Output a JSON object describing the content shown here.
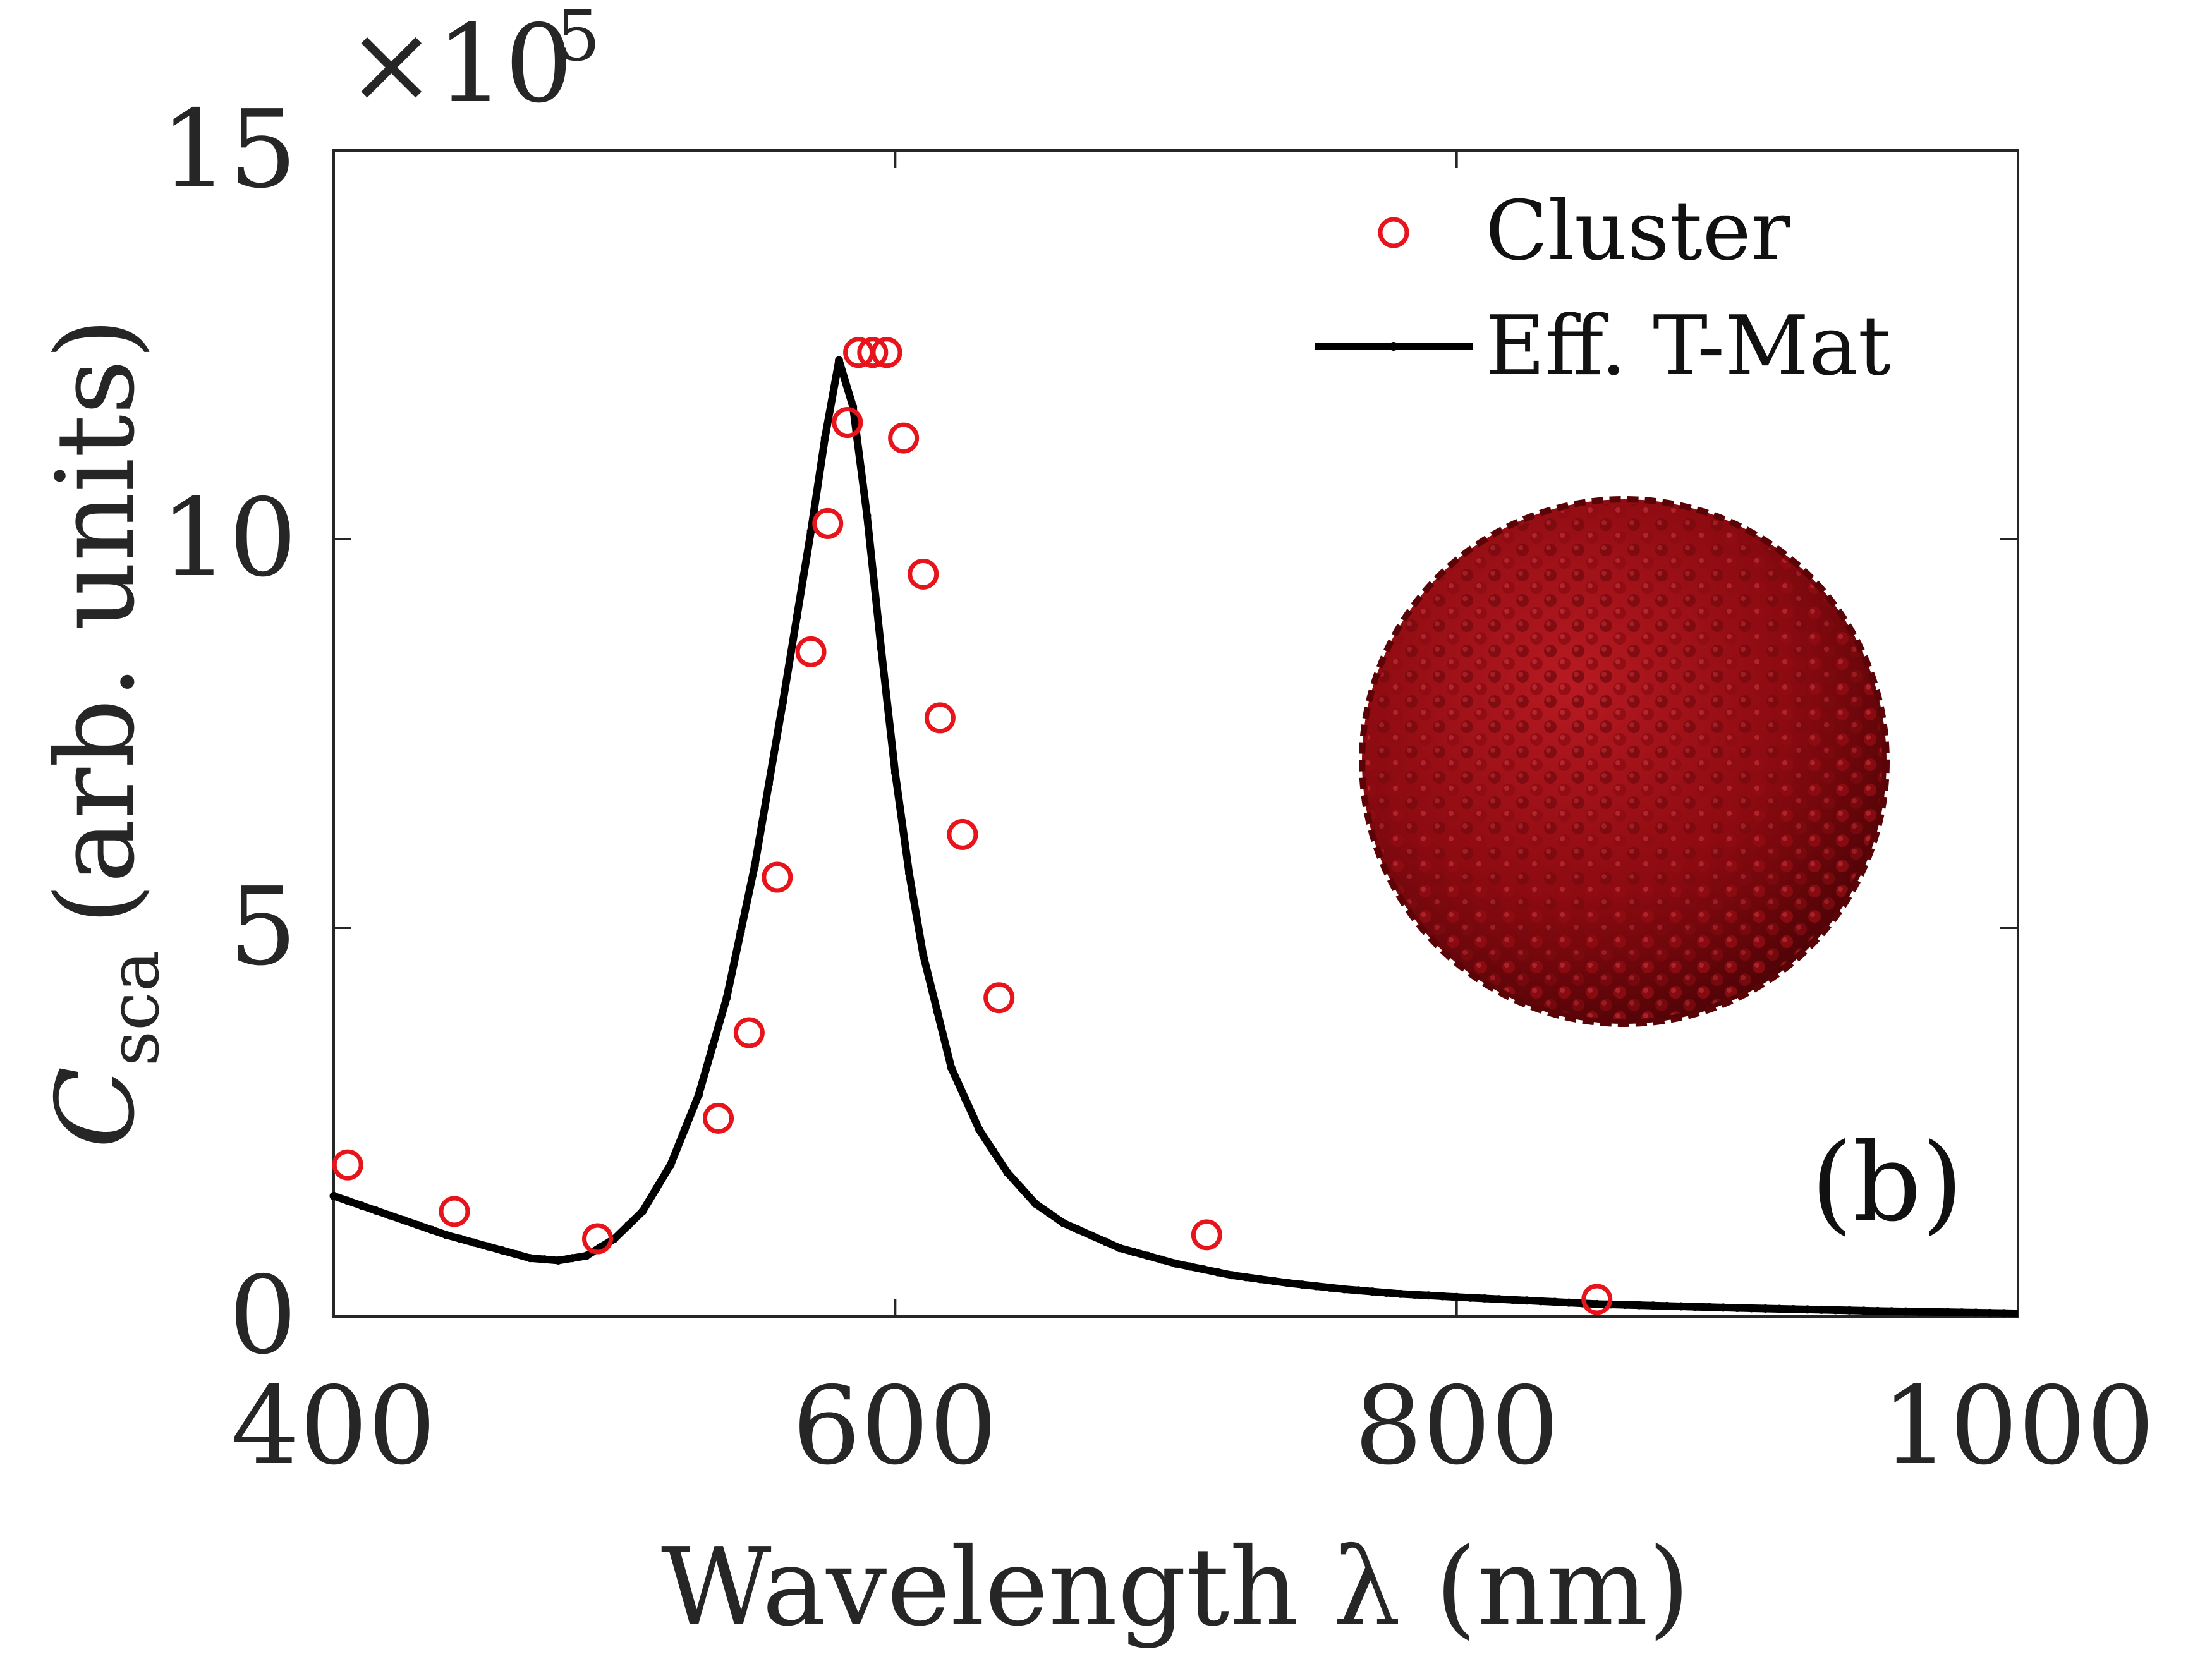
{
  "chart_data": {
    "type": "line",
    "title": "",
    "xlabel": "Wavelength λ (nm)",
    "ylabel_main": "C",
    "ylabel_sub": "sca",
    "ylabel_rest": "(arb. units)",
    "xlim": [
      400,
      1000
    ],
    "ylim": [
      0,
      15
    ],
    "xticks": [
      400,
      600,
      800,
      1000
    ],
    "yticks": [
      0,
      5,
      10,
      15
    ],
    "y_multiplier": {
      "base": "×10",
      "exponent": "5"
    },
    "panel_label": "(b)",
    "legend_position": "top-right",
    "grid": false,
    "colors": {
      "cluster": "#e8141c",
      "eff_tmat": "#000000",
      "inset_sphere": "#8b0a10"
    },
    "series": [
      {
        "name": "Cluster",
        "style": "open-circle",
        "x": [
          405,
          443,
          494,
          537,
          548,
          558,
          570,
          576,
          583,
          587,
          592,
          597,
          603,
          610,
          616,
          624,
          637,
          711,
          850
        ],
        "y": [
          1.95,
          1.35,
          1.0,
          2.55,
          3.65,
          5.65,
          8.55,
          10.2,
          11.5,
          12.4,
          12.4,
          12.4,
          11.3,
          9.55,
          7.7,
          6.2,
          4.1,
          1.05,
          0.22
        ]
      },
      {
        "name": "Eff. T-Mat",
        "style": "line-with-dots",
        "x": [
          400,
          420,
          440,
          460,
          470,
          480,
          490,
          500,
          510,
          520,
          530,
          540,
          550,
          560,
          570,
          575,
          580,
          585,
          590,
          595,
          600,
          605,
          610,
          620,
          630,
          640,
          650,
          660,
          680,
          700,
          720,
          740,
          760,
          780,
          800,
          850,
          900,
          950,
          1000
        ],
        "y": [
          1.55,
          1.3,
          1.05,
          0.85,
          0.75,
          0.72,
          0.78,
          1.0,
          1.35,
          1.95,
          2.85,
          4.1,
          5.8,
          7.9,
          10.1,
          11.3,
          12.3,
          11.7,
          10.3,
          8.6,
          7.0,
          5.7,
          4.65,
          3.2,
          2.4,
          1.85,
          1.45,
          1.2,
          0.88,
          0.68,
          0.53,
          0.43,
          0.35,
          0.29,
          0.25,
          0.16,
          0.11,
          0.07,
          0.04
        ]
      }
    ]
  }
}
